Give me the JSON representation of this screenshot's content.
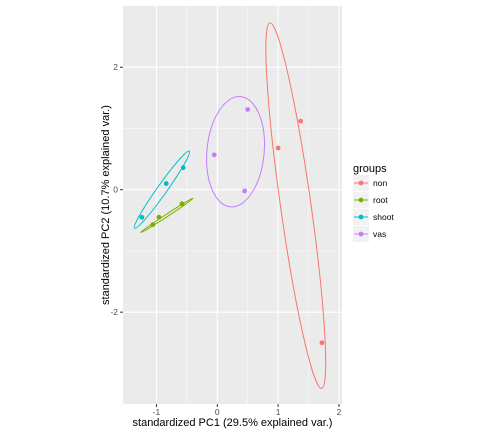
{
  "chart_data": {
    "type": "scatter",
    "xlabel": "standardized PC1 (29.5% explained var.)",
    "ylabel": "standardized PC2 (10.7% explained var.)",
    "xlim": [
      -1.55,
      2.05
    ],
    "ylim": [
      -3.5,
      3.0
    ],
    "x_ticks": [
      {
        "value": -1,
        "label": "-1"
      },
      {
        "value": 0,
        "label": "0"
      },
      {
        "value": 1,
        "label": "1"
      },
      {
        "value": 2,
        "label": "2"
      }
    ],
    "y_ticks": [
      {
        "value": -2,
        "label": "-2"
      },
      {
        "value": 0,
        "label": "0"
      },
      {
        "value": 2,
        "label": "2"
      }
    ],
    "grid": true,
    "panel_background": "#ebebeb",
    "legend": {
      "title": "groups",
      "position": "right",
      "entries": [
        "non",
        "root",
        "shoot",
        "vas"
      ]
    },
    "series": [
      {
        "name": "non",
        "color": "#f8766d",
        "points": [
          [
            1.0,
            0.68
          ],
          [
            1.37,
            1.12
          ],
          [
            1.72,
            -2.5
          ]
        ],
        "ellipse": {
          "center": [
            1.29,
            -0.26
          ],
          "major_axis_endpoints": [
            [
              0.93,
              2.75
            ],
            [
              1.78,
              -3.22
            ]
          ],
          "minor_half_width": 0.25
        }
      },
      {
        "name": "root",
        "color": "#7cae00",
        "points": [
          [
            -1.06,
            -0.57
          ],
          [
            -0.96,
            -0.45
          ],
          [
            -0.58,
            -0.23
          ]
        ],
        "ellipse": {
          "center": [
            -0.83,
            -0.42
          ],
          "major_axis_endpoints": [
            [
              -1.25,
              -0.68
            ],
            [
              -0.39,
              -0.12
            ]
          ],
          "minor_half_width": 0.02
        }
      },
      {
        "name": "shoot",
        "color": "#00bfc4",
        "points": [
          [
            -1.24,
            -0.45
          ],
          [
            -0.84,
            0.1
          ],
          [
            -0.56,
            0.36
          ]
        ],
        "ellipse": {
          "center": [
            -0.91,
            0.0
          ],
          "major_axis_endpoints": [
            [
              -1.35,
              -0.63
            ],
            [
              -0.45,
              0.63
            ]
          ],
          "minor_half_width": 0.08
        }
      },
      {
        "name": "vas",
        "color": "#c77cff",
        "points": [
          [
            -0.05,
            0.57
          ],
          [
            0.5,
            1.31
          ],
          [
            0.45,
            -0.02
          ]
        ],
        "ellipse": {
          "center": [
            0.3,
            0.62
          ],
          "major_axis_endpoints": [
            [
              0.21,
              -0.38
            ],
            [
              0.38,
              1.42
            ]
          ],
          "minor_half_width": 0.47
        }
      }
    ]
  }
}
